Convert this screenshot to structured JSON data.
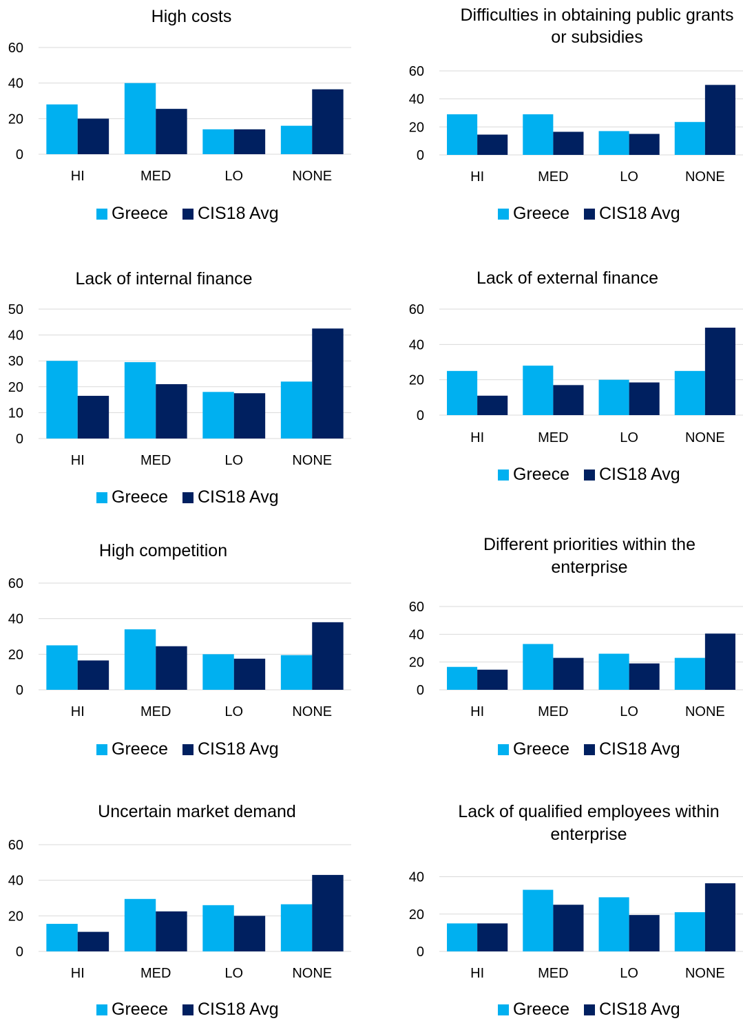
{
  "colors": {
    "greece": "#00b0f0",
    "cis": "#002060",
    "grid": "#d9d9d9"
  },
  "chart_data": [
    {
      "type": "bar",
      "title": [
        "High costs"
      ],
      "categories": [
        "HI",
        "MED",
        "LO",
        "NONE"
      ],
      "series": [
        {
          "name": "Greece",
          "values": [
            28,
            40,
            14,
            16
          ]
        },
        {
          "name": "CIS18 Avg",
          "values": [
            20,
            25.5,
            14,
            36.5
          ]
        }
      ],
      "yticks": [
        0,
        20,
        40,
        60
      ],
      "ylim": [
        0,
        60
      ],
      "grid": true,
      "legend": "bottom"
    },
    {
      "type": "bar",
      "title": [
        "Difficulties in obtaining public grants",
        "or subsidies"
      ],
      "categories": [
        "HI",
        "MED",
        "LO",
        "NONE"
      ],
      "series": [
        {
          "name": "Greece",
          "values": [
            29,
            29,
            17,
            23.5
          ]
        },
        {
          "name": "CIS18 Avg",
          "values": [
            14.5,
            16.5,
            15,
            50
          ]
        }
      ],
      "yticks": [
        0,
        20,
        40,
        60
      ],
      "ylim": [
        0,
        60
      ],
      "grid": true,
      "legend": "bottom"
    },
    {
      "type": "bar",
      "title": [
        "Lack of internal finance"
      ],
      "categories": [
        "HI",
        "MED",
        "LO",
        "NONE"
      ],
      "series": [
        {
          "name": "Greece",
          "values": [
            30,
            29.5,
            18,
            22
          ]
        },
        {
          "name": "CIS18 Avg",
          "values": [
            16.5,
            21,
            17.5,
            42.5
          ]
        }
      ],
      "yticks": [
        0,
        10,
        20,
        30,
        40,
        50
      ],
      "ylim": [
        0,
        50
      ],
      "grid": true,
      "legend": "bottom"
    },
    {
      "type": "bar",
      "title": [
        "Lack of external finance"
      ],
      "categories": [
        "HI",
        "MED",
        "LO",
        "NONE"
      ],
      "series": [
        {
          "name": "Greece",
          "values": [
            25,
            28,
            20,
            25
          ]
        },
        {
          "name": "CIS18 Avg",
          "values": [
            11,
            17,
            18.5,
            49.5
          ]
        }
      ],
      "yticks": [
        0,
        20,
        40,
        60
      ],
      "ylim": [
        0,
        60
      ],
      "grid": true,
      "legend": "bottom"
    },
    {
      "type": "bar",
      "title": [
        "High competition"
      ],
      "categories": [
        "HI",
        "MED",
        "LO",
        "NONE"
      ],
      "series": [
        {
          "name": "Greece",
          "values": [
            25,
            34,
            20,
            19.5
          ]
        },
        {
          "name": "CIS18 Avg",
          "values": [
            16.5,
            24.5,
            17.5,
            38
          ]
        }
      ],
      "yticks": [
        0,
        20,
        40,
        60
      ],
      "ylim": [
        0,
        60
      ],
      "grid": true,
      "legend": "bottom"
    },
    {
      "type": "bar",
      "title": [
        "Different priorities within the",
        "enterprise"
      ],
      "categories": [
        "HI",
        "MED",
        "LO",
        "NONE"
      ],
      "series": [
        {
          "name": "Greece",
          "values": [
            16.5,
            33,
            26,
            23
          ]
        },
        {
          "name": "CIS18 Avg",
          "values": [
            14.5,
            23,
            19,
            40.5
          ]
        }
      ],
      "yticks": [
        0,
        20,
        40,
        60
      ],
      "ylim": [
        0,
        60
      ],
      "grid": true,
      "legend": "bottom"
    },
    {
      "type": "bar",
      "title": [
        "Uncertain market demand"
      ],
      "categories": [
        "HI",
        "MED",
        "LO",
        "NONE"
      ],
      "series": [
        {
          "name": "Greece",
          "values": [
            15.5,
            29.5,
            26,
            26.5
          ]
        },
        {
          "name": "CIS18 Avg",
          "values": [
            11,
            22.5,
            20,
            43
          ]
        }
      ],
      "yticks": [
        0,
        20,
        40,
        60
      ],
      "ylim": [
        0,
        60
      ],
      "grid": true,
      "legend": "bottom"
    },
    {
      "type": "bar",
      "title": [
        "Lack of qualified employees within",
        "enterprise"
      ],
      "categories": [
        "HI",
        "MED",
        "LO",
        "NONE"
      ],
      "series": [
        {
          "name": "Greece",
          "values": [
            15,
            33,
            29,
            21
          ]
        },
        {
          "name": "CIS18 Avg",
          "values": [
            15,
            25,
            19.5,
            36.5
          ]
        }
      ],
      "yticks": [
        0,
        20,
        40
      ],
      "ylim": [
        0,
        45
      ],
      "grid": true,
      "legend": "bottom"
    }
  ]
}
